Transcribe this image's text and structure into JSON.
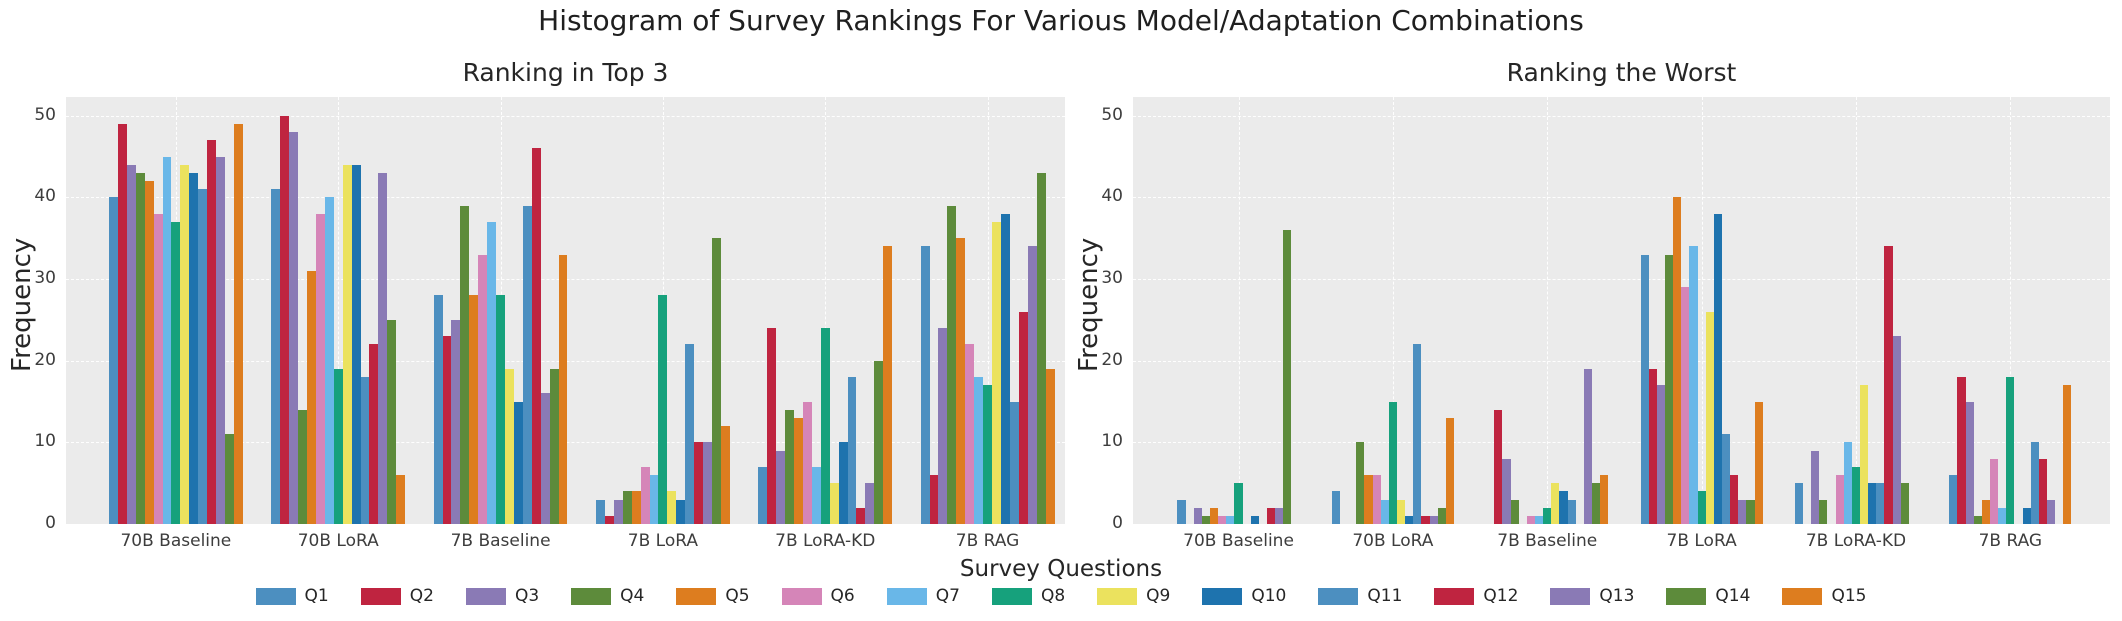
{
  "figure": {
    "title": "Histogram of Survey Rankings For Various Model/Adaptation Combinations",
    "xlabel": "Survey Questions"
  },
  "chart_data": [
    {
      "type": "bar",
      "title": "Ranking in Top 3",
      "ylabel": "Frequency",
      "xlabel": "Survey Questions",
      "categories": [
        "70B Baseline",
        "70B LoRA",
        "7B Baseline",
        "7B LoRA",
        "7B LoRA-KD",
        "7B RAG"
      ],
      "yticks": [
        0,
        10,
        20,
        30,
        40,
        50
      ],
      "ylim": [
        0,
        52.3
      ],
      "grid": "dashed horizontal and vertical on gray background",
      "series": [
        {
          "name": "Q1",
          "color": "#4c8fc0",
          "values": [
            40,
            41,
            28,
            3,
            7,
            34
          ]
        },
        {
          "name": "Q2",
          "color": "#bf2440",
          "values": [
            49,
            50,
            23,
            1,
            24,
            6
          ]
        },
        {
          "name": "Q3",
          "color": "#8a7ab5",
          "values": [
            44,
            48,
            25,
            3,
            9,
            24
          ]
        },
        {
          "name": "Q4",
          "color": "#5d8b3b",
          "values": [
            43,
            14,
            39,
            4,
            14,
            39
          ]
        },
        {
          "name": "Q5",
          "color": "#dd7d1f",
          "values": [
            42,
            31,
            28,
            4,
            13,
            35
          ]
        },
        {
          "name": "Q6",
          "color": "#d585b8",
          "values": [
            38,
            38,
            33,
            7,
            15,
            22
          ]
        },
        {
          "name": "Q7",
          "color": "#69b7e8",
          "values": [
            45,
            40,
            37,
            6,
            7,
            18
          ]
        },
        {
          "name": "Q8",
          "color": "#16a17c",
          "values": [
            37,
            19,
            28,
            28,
            24,
            17
          ]
        },
        {
          "name": "Q9",
          "color": "#ebe25e",
          "values": [
            44,
            44,
            19,
            4,
            5,
            37
          ]
        },
        {
          "name": "Q10",
          "color": "#1e73ae",
          "values": [
            43,
            44,
            15,
            3,
            10,
            38
          ]
        },
        {
          "name": "Q11",
          "color": "#4c8fc0",
          "values": [
            41,
            18,
            39,
            22,
            18,
            15
          ]
        },
        {
          "name": "Q12",
          "color": "#bf2440",
          "values": [
            47,
            22,
            46,
            10,
            2,
            26
          ]
        },
        {
          "name": "Q13",
          "color": "#8a7ab5",
          "values": [
            45,
            43,
            16,
            10,
            5,
            34
          ]
        },
        {
          "name": "Q14",
          "color": "#5d8b3b",
          "values": [
            11,
            25,
            19,
            35,
            20,
            43
          ]
        },
        {
          "name": "Q15",
          "color": "#dd7d1f",
          "values": [
            49,
            6,
            33,
            12,
            34,
            19
          ]
        }
      ]
    },
    {
      "type": "bar",
      "title": "Ranking the Worst",
      "ylabel": "Frequency",
      "xlabel": "Survey Questions",
      "categories": [
        "70B Baseline",
        "70B LoRA",
        "7B Baseline",
        "7B LoRA",
        "7B LoRA-KD",
        "7B RAG"
      ],
      "yticks": [
        0,
        10,
        20,
        30,
        40,
        50
      ],
      "ylim": [
        0,
        52.3
      ],
      "grid": "dashed horizontal and vertical on gray background",
      "series": [
        {
          "name": "Q1",
          "color": "#4c8fc0",
          "values": [
            3,
            4,
            0,
            33,
            5,
            6
          ]
        },
        {
          "name": "Q2",
          "color": "#bf2440",
          "values": [
            0,
            0,
            14,
            19,
            0,
            18
          ]
        },
        {
          "name": "Q3",
          "color": "#8a7ab5",
          "values": [
            2,
            0,
            8,
            17,
            9,
            15
          ]
        },
        {
          "name": "Q4",
          "color": "#5d8b3b",
          "values": [
            1,
            10,
            3,
            33,
            3,
            1
          ]
        },
        {
          "name": "Q5",
          "color": "#dd7d1f",
          "values": [
            2,
            6,
            0,
            40,
            0,
            3
          ]
        },
        {
          "name": "Q6",
          "color": "#d585b8",
          "values": [
            1,
            6,
            1,
            29,
            6,
            8
          ]
        },
        {
          "name": "Q7",
          "color": "#69b7e8",
          "values": [
            1,
            3,
            1,
            34,
            10,
            2
          ]
        },
        {
          "name": "Q8",
          "color": "#16a17c",
          "values": [
            5,
            15,
            2,
            4,
            7,
            18
          ]
        },
        {
          "name": "Q9",
          "color": "#ebe25e",
          "values": [
            0,
            3,
            5,
            26,
            17,
            0
          ]
        },
        {
          "name": "Q10",
          "color": "#1e73ae",
          "values": [
            1,
            1,
            4,
            38,
            5,
            2
          ]
        },
        {
          "name": "Q11",
          "color": "#4c8fc0",
          "values": [
            0,
            22,
            3,
            11,
            5,
            10
          ]
        },
        {
          "name": "Q12",
          "color": "#bf2440",
          "values": [
            2,
            1,
            0,
            6,
            34,
            8
          ]
        },
        {
          "name": "Q13",
          "color": "#8a7ab5",
          "values": [
            2,
            1,
            19,
            3,
            23,
            3
          ]
        },
        {
          "name": "Q14",
          "color": "#5d8b3b",
          "values": [
            36,
            2,
            5,
            3,
            5,
            0
          ]
        },
        {
          "name": "Q15",
          "color": "#dd7d1f",
          "values": [
            0,
            13,
            6,
            15,
            0,
            17
          ]
        }
      ]
    }
  ],
  "legend": {
    "position": "bottom center, single row",
    "entries": [
      {
        "label": "Q1",
        "color": "#4c8fc0"
      },
      {
        "label": "Q2",
        "color": "#bf2440"
      },
      {
        "label": "Q3",
        "color": "#8a7ab5"
      },
      {
        "label": "Q4",
        "color": "#5d8b3b"
      },
      {
        "label": "Q5",
        "color": "#dd7d1f"
      },
      {
        "label": "Q6",
        "color": "#d585b8"
      },
      {
        "label": "Q7",
        "color": "#69b7e8"
      },
      {
        "label": "Q8",
        "color": "#16a17c"
      },
      {
        "label": "Q9",
        "color": "#ebe25e"
      },
      {
        "label": "Q10",
        "color": "#1e73ae"
      },
      {
        "label": "Q11",
        "color": "#4c8fc0"
      },
      {
        "label": "Q12",
        "color": "#bf2440"
      },
      {
        "label": "Q13",
        "color": "#8a7ab5"
      },
      {
        "label": "Q14",
        "color": "#5d8b3b"
      },
      {
        "label": "Q15",
        "color": "#dd7d1f"
      }
    ]
  }
}
